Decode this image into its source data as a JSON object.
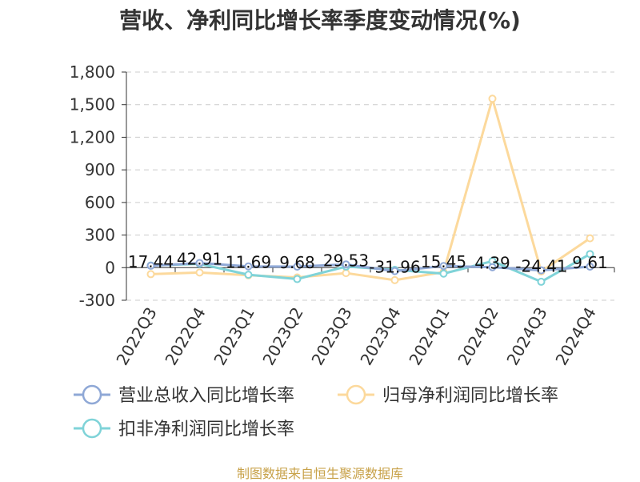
{
  "title": "营收、净利同比增长率季度变动情况(%)",
  "source": "制图数据来自恒生聚源数据库",
  "chart_data": {
    "type": "line",
    "categories": [
      "2022Q3",
      "2022Q4",
      "2023Q1",
      "2023Q2",
      "2023Q3",
      "2023Q4",
      "2024Q1",
      "2024Q2",
      "2024Q3",
      "2024Q4"
    ],
    "ylim": [
      -300,
      1800
    ],
    "yticks": [
      -300,
      0,
      300,
      600,
      900,
      1200,
      1500,
      1800
    ],
    "ytick_labels": [
      "-300",
      "0",
      "300",
      "600",
      "900",
      "1,200",
      "1,500",
      "1,800"
    ],
    "grid": true,
    "legend_position": "bottom-left",
    "series": [
      {
        "name": "营业总收入同比增长率",
        "color": "#8fa8d6",
        "values": [
          17.44,
          42.91,
          11.69,
          9.68,
          29.53,
          -31.96,
          15.45,
          4.39,
          -24.41,
          9.61
        ],
        "labels": [
          "17.44",
          "42.91",
          "11.69",
          "9.68",
          "29.53",
          "-31.96",
          "15.45",
          "4.39",
          "-24.41",
          "9.61"
        ]
      },
      {
        "name": "归母净利润同比增长率",
        "color": "#fcd99c",
        "values": [
          -60,
          -45,
          -70,
          -90,
          -50,
          -115,
          -40,
          1555,
          -35,
          270
        ]
      },
      {
        "name": "扣非净利润同比增长率",
        "color": "#7fd3d8",
        "values": [
          20,
          35,
          -65,
          -105,
          10,
          -20,
          -55,
          60,
          -130,
          125
        ]
      }
    ]
  }
}
